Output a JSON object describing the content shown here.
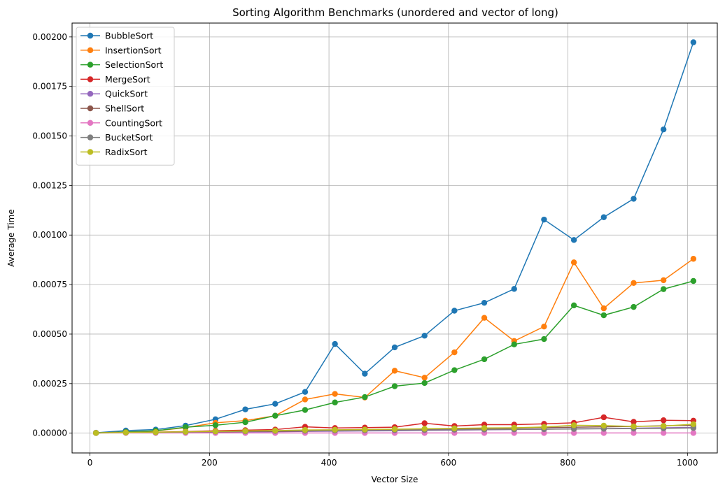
{
  "chart_data": {
    "type": "line",
    "title": "Sorting Algorithm Benchmarks (unordered and vector of long)",
    "xlabel": "Vector Size",
    "ylabel": "Average Time",
    "xlim": [
      -30,
      1050
    ],
    "ylim": [
      -0.0001,
      0.00207
    ],
    "xticks": [
      0,
      200,
      400,
      600,
      800,
      1000
    ],
    "yticks": [
      0,
      0.00025,
      0.0005,
      0.00075,
      0.001,
      0.00125,
      0.0015,
      0.00175,
      0.002
    ],
    "xtick_labels": [
      "0",
      "200",
      "400",
      "600",
      "800",
      "1000"
    ],
    "ytick_labels": [
      "0.00000",
      "0.00025",
      "0.00050",
      "0.00075",
      "0.00100",
      "0.00125",
      "0.00150",
      "0.00175",
      "0.00200"
    ],
    "grid": true,
    "legend_position": "top-left",
    "x": [
      10,
      60,
      110,
      160,
      210,
      260,
      310,
      360,
      410,
      460,
      510,
      560,
      610,
      660,
      710,
      760,
      810,
      860,
      910,
      960,
      1010
    ],
    "series": [
      {
        "name": "BubbleSort",
        "color": "#1f77b4",
        "values": [
          2e-06,
          1.3e-05,
          1.8e-05,
          3.8e-05,
          7e-05,
          0.00012,
          0.000148,
          0.000208,
          0.00045,
          0.0003,
          0.000433,
          0.000492,
          0.000618,
          0.000658,
          0.000728,
          0.001078,
          0.000975,
          0.00109,
          0.001183,
          0.001533,
          0.001973
        ]
      },
      {
        "name": "InsertionSort",
        "color": "#ff7f0e",
        "values": [
          1e-06,
          6e-06,
          1.1e-05,
          2.8e-05,
          5.2e-05,
          6.3e-05,
          8.8e-05,
          0.00017,
          0.000198,
          0.00018,
          0.000315,
          0.00028,
          0.000408,
          0.000582,
          0.000465,
          0.000538,
          0.000862,
          0.00063,
          0.000758,
          0.000772,
          0.00088
        ]
      },
      {
        "name": "SelectionSort",
        "color": "#2ca02c",
        "values": [
          1e-06,
          6e-06,
          1.2e-05,
          3e-05,
          4e-05,
          5.5e-05,
          8.8e-05,
          0.000117,
          0.000155,
          0.000182,
          0.000237,
          0.000253,
          0.000318,
          0.000373,
          0.000448,
          0.000475,
          0.000645,
          0.000595,
          0.000637,
          0.000727,
          0.000768
        ]
      },
      {
        "name": "MergeSort",
        "color": "#d62728",
        "values": [
          1e-06,
          3e-06,
          5e-06,
          8e-06,
          1.2e-05,
          1.5e-05,
          1.8e-05,
          3.2e-05,
          2.6e-05,
          2.8e-05,
          3e-05,
          5e-05,
          3.6e-05,
          4.3e-05,
          4.3e-05,
          4.7e-05,
          5.2e-05,
          8e-05,
          5.7e-05,
          6.5e-05,
          6.3e-05
        ]
      },
      {
        "name": "QuickSort",
        "color": "#9467bd",
        "values": [
          1e-06,
          2e-06,
          3e-06,
          4e-06,
          5e-06,
          6e-06,
          7e-06,
          9e-06,
          1e-05,
          1.1e-05,
          1.2e-05,
          1.4e-05,
          1.5e-05,
          1.7e-05,
          1.8e-05,
          2e-05,
          2.2e-05,
          2.3e-05,
          2.5e-05,
          2.7e-05,
          2.9e-05
        ]
      },
      {
        "name": "ShellSort",
        "color": "#8c564b",
        "values": [
          1e-06,
          2e-06,
          3e-06,
          5e-06,
          6e-06,
          8e-06,
          9e-06,
          1.1e-05,
          1.3e-05,
          1.5e-05,
          1.6e-05,
          1.9e-05,
          2.1e-05,
          2.3e-05,
          2.5e-05,
          2.8e-05,
          3e-05,
          3.2e-05,
          3.4e-05,
          3.7e-05,
          4e-05
        ]
      },
      {
        "name": "CountingSort",
        "color": "#e377c2",
        "values": [
          1e-06,
          1e-06,
          1e-06,
          1e-06,
          1e-06,
          1e-06,
          1e-06,
          1e-06,
          1e-06,
          1e-06,
          1e-06,
          1e-06,
          1e-06,
          1e-06,
          1e-06,
          1e-06,
          1e-06,
          1e-06,
          1e-06,
          1e-06,
          1e-06
        ]
      },
      {
        "name": "BucketSort",
        "color": "#7f7f7f",
        "values": [
          1e-06,
          3e-06,
          4e-06,
          6e-06,
          8e-06,
          9e-06,
          1.1e-05,
          1.2e-05,
          1.3e-05,
          1.4e-05,
          1.5e-05,
          1.6e-05,
          1.7e-05,
          1.8e-05,
          1.9e-05,
          2e-05,
          2.1e-05,
          2.2e-05,
          2.3e-05,
          2.4e-05,
          2.6e-05
        ]
      },
      {
        "name": "RadixSort",
        "color": "#bcbd22",
        "values": [
          1e-06,
          3e-06,
          5e-06,
          7e-06,
          9e-06,
          1.1e-05,
          1.3e-05,
          1.6e-05,
          1.7e-05,
          1.8e-05,
          2e-05,
          2.2e-05,
          2.4e-05,
          2.6e-05,
          2.7e-05,
          3.1e-05,
          4e-05,
          3.8e-05,
          3.4e-05,
          3.6e-05,
          4.5e-05
        ]
      }
    ]
  }
}
